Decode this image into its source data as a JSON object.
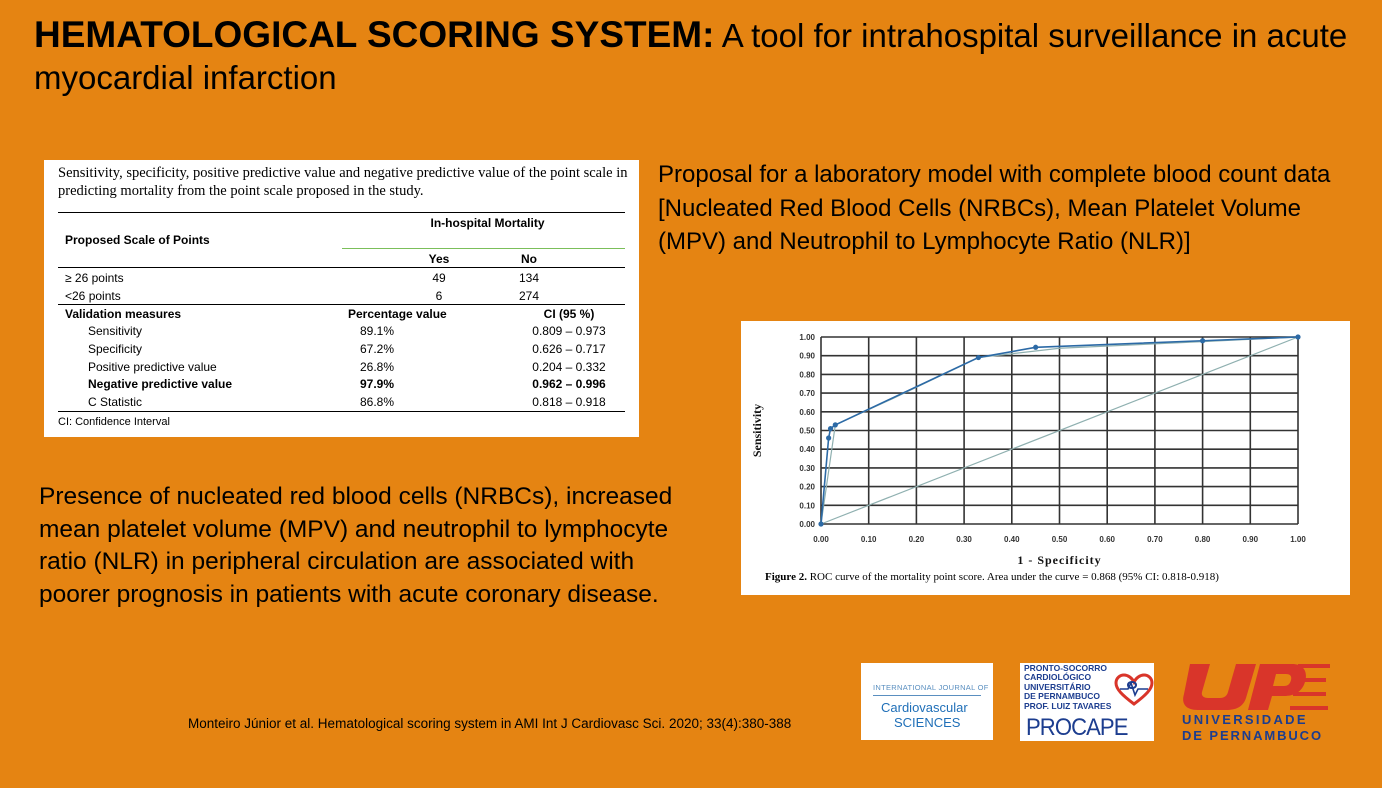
{
  "title": {
    "bold": "HEMATOLOGICAL SCORING SYSTEM:",
    "rest": " A tool for intrahospital surveillance in acute myocardial infarction"
  },
  "table": {
    "caption": "Sensitivity, specificity, positive predictive value and negative predictive value of the point scale in predicting mortality from the point scale proposed in the study.",
    "header_left": "Proposed Scale of Points",
    "header_group": "In-hospital Mortality",
    "col_yes": "Yes",
    "col_no": "No",
    "rows": [
      {
        "label": "≥ 26 points",
        "yes": "49",
        "no": "134"
      },
      {
        "label": "<26 points",
        "yes": "6",
        "no": "274"
      }
    ],
    "validation_header": {
      "label": "Validation measures",
      "value": "Percentage value",
      "ci": "CI (95 %)"
    },
    "measures": [
      {
        "label": "Sensitivity",
        "value": "89.1%",
        "ci": "0.809 – 0.973",
        "bold": false
      },
      {
        "label": "Specificity",
        "value": "67.2%",
        "ci": "0.626 – 0.717",
        "bold": false
      },
      {
        "label": "Positive predictive value",
        "value": "26.8%",
        "ci": "0.204 – 0.332",
        "bold": false
      },
      {
        "label": "Negative predictive value",
        "value": "97.9%",
        "ci": "0.962 – 0.996",
        "bold": true
      },
      {
        "label": "C Statistic",
        "value": "86.8%",
        "ci": "0.818 – 0.918",
        "bold": false
      }
    ],
    "footnote": "CI: Confidence Interval"
  },
  "proposal_text": "Proposal for a laboratory model with complete blood count data [Nucleated Red Blood Cells (NRBCs), Mean Platelet Volume (MPV) and Neutrophil to Lymphocyte Ratio (NLR)]",
  "presence_text": "Presence of nucleated red blood cells (NRBCs), increased mean platelet volume (MPV) and neutrophil to lymphocyte ratio (NLR) in peripheral circulation are associated with poorer prognosis in patients with acute coronary disease.",
  "chart_data": {
    "type": "line",
    "xlabel": "1 - Specificity",
    "ylabel": "Sensitivity",
    "xlim": [
      0,
      1
    ],
    "ylim": [
      0,
      1
    ],
    "xticks": [
      "0.00",
      "0.10",
      "0.20",
      "0.30",
      "0.40",
      "0.50",
      "0.60",
      "0.70",
      "0.80",
      "0.90",
      "1.00"
    ],
    "yticks": [
      "0.00",
      "0.10",
      "0.20",
      "0.30",
      "0.40",
      "0.50",
      "0.60",
      "0.70",
      "0.80",
      "0.90",
      "1.00"
    ],
    "grid": true,
    "series": [
      {
        "x": [
          0.0,
          0.016,
          0.02,
          0.03,
          0.33,
          0.45,
          0.8,
          1.0
        ],
        "y": [
          0.0,
          0.46,
          0.51,
          0.53,
          0.89,
          0.945,
          0.98,
          1.0
        ],
        "color": "#2c6aa6",
        "markers": true
      },
      {
        "x": [
          0.0,
          1.0
        ],
        "y": [
          0.0,
          1.0
        ],
        "color": "#8fb0b0",
        "markers": false
      },
      {
        "x": [
          0.0,
          0.03,
          0.15,
          0.33,
          0.5,
          0.8,
          1.0
        ],
        "y": [
          0.0,
          0.53,
          0.67,
          0.89,
          0.94,
          0.975,
          1.0
        ],
        "color": "#8fb0b0",
        "markers": false
      }
    ],
    "caption_bold": "Figure 2.",
    "caption_rest": " ROC curve of the mortality point score. Area under the curve = 0.868 (95% CI: 0.818-0.918)"
  },
  "citation": "Monteiro Júnior et al. Hematological scoring system in AMI Int J Cardiovasc Sci. 2020; 33(4):380-388",
  "logos": {
    "ijcs": {
      "top": "INTERNATIONAL JOURNAL OF",
      "line1": "Cardiovascular",
      "line2": "SCIENCES"
    },
    "procape": {
      "lines": [
        "PRONTO-SOCORRO",
        "CARDIOLÓGICO",
        "UNIVERSITÁRIO",
        "DE PERNAMBUCO",
        "PROF. LUIZ TAVARES"
      ],
      "name": "PROCAPE"
    },
    "upe": {
      "mark": "UPE",
      "sub1": "UNIVERSIDADE",
      "sub2": "DE PERNAMBUCO"
    }
  },
  "colors": {
    "background": "#e58412",
    "roc_curve": "#2c6aa6",
    "logo_blue": "#1c3d8f",
    "upe_red": "#d9352a"
  }
}
